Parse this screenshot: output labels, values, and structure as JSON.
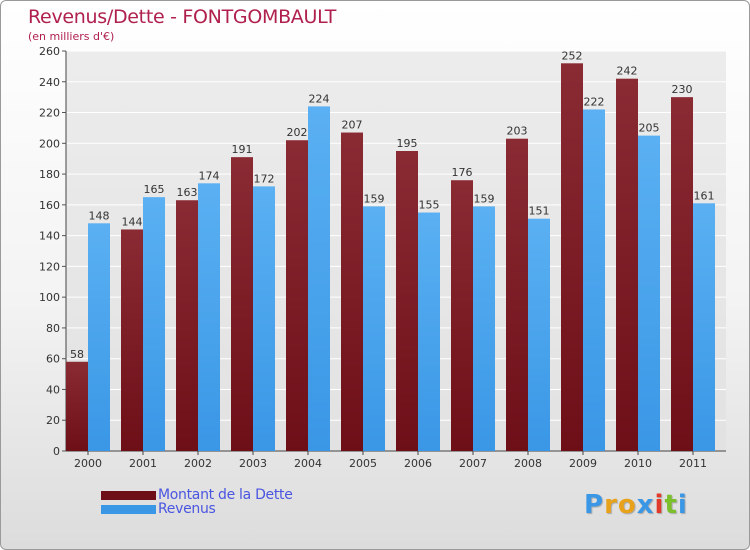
{
  "title": "Revenus/Dette - FONTGOMBAULT",
  "subtitle": "(en milliers d'€)",
  "logo_text": "Proxiti",
  "colors": {
    "dette": "#6e0f18",
    "revenus": "#3a97e6",
    "title": "#b0204d",
    "legend_text": "#4a55e0"
  },
  "chart_data": {
    "type": "bar",
    "categories": [
      "2000",
      "2001",
      "2002",
      "2003",
      "2004",
      "2005",
      "2006",
      "2007",
      "2008",
      "2009",
      "2010",
      "2011"
    ],
    "series": [
      {
        "name": "Montant de la Dette",
        "values": [
          58,
          144,
          163,
          191,
          202,
          207,
          195,
          176,
          203,
          252,
          242,
          230
        ]
      },
      {
        "name": "Revenus",
        "values": [
          148,
          165,
          174,
          172,
          224,
          159,
          155,
          159,
          151,
          222,
          205,
          161
        ]
      }
    ],
    "ylim": [
      0,
      260
    ],
    "yticks": [
      0,
      20,
      40,
      60,
      80,
      100,
      120,
      140,
      160,
      180,
      200,
      220,
      240,
      260
    ],
    "grid": true,
    "legend_position": "bottom-left"
  }
}
